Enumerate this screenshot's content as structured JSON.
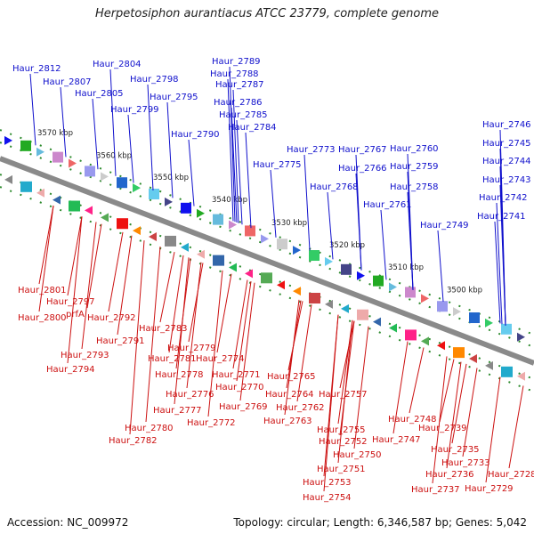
{
  "title": "Herpetosiphon aurantiacus ATCC 23779, complete genome",
  "footer": {
    "accession": "Accession: NC_009972",
    "meta": "Topology: circular; Length: 6,346,587 bp; Genes: 5,042"
  },
  "colors": {
    "plus_label": "#1010cc",
    "minus_label": "#cc1010",
    "backbone": "#8a8a8a",
    "tick_dots": "#2e8b2e"
  },
  "ticks": [
    "3570 kbp",
    "3560 kbp",
    "3550 kbp",
    "3540 kbp",
    "3530 kbp",
    "3520 kbp",
    "3510 kbp",
    "3500 kbp"
  ],
  "labels_plus": [
    "Haur_2812",
    "Haur_2804",
    "Haur_2807",
    "Haur_2805",
    "Haur_2798",
    "Haur_2799",
    "Haur_2795",
    "Haur_2789",
    "Haur_2788",
    "Haur_2787",
    "Haur_2786",
    "Haur_2785",
    "Haur_2790",
    "Haur_2784",
    "Haur_2773",
    "Haur_2775",
    "Haur_2767",
    "Haur_2766",
    "Haur_2760",
    "Haur_2759",
    "Haur_2768",
    "Haur_2758",
    "Haur_2761",
    "Haur_2749",
    "Haur_2746",
    "Haur_2745",
    "Haur_2744",
    "Haur_2743",
    "Haur_2742",
    "Haur_2741"
  ],
  "labels_minus": [
    "Haur_2801",
    "Haur_2797",
    "Haur_2800",
    "prfA",
    "Haur_2792",
    "Haur_2791",
    "Haur_2793",
    "Haur_2794",
    "Haur_2783",
    "Haur_2781",
    "Haur_2779",
    "Haur_2774",
    "Haur_2778",
    "Haur_2771",
    "Haur_2776",
    "Haur_2770",
    "Haur_2777",
    "Haur_2769",
    "Haur_2772",
    "Haur_2780",
    "Haur_2782",
    "Haur_2765",
    "Haur_2764",
    "Haur_2762",
    "Haur_2763",
    "Haur_2757",
    "Haur_2755",
    "Haur_2752",
    "Haur_2750",
    "Haur_2751",
    "Haur_2753",
    "Haur_2754",
    "Haur_2748",
    "Haur_2747",
    "Haur_2739",
    "Haur_2735",
    "Haur_2733",
    "Haur_2736",
    "Haur_2737",
    "Haur_2728",
    "Haur_2729"
  ]
}
